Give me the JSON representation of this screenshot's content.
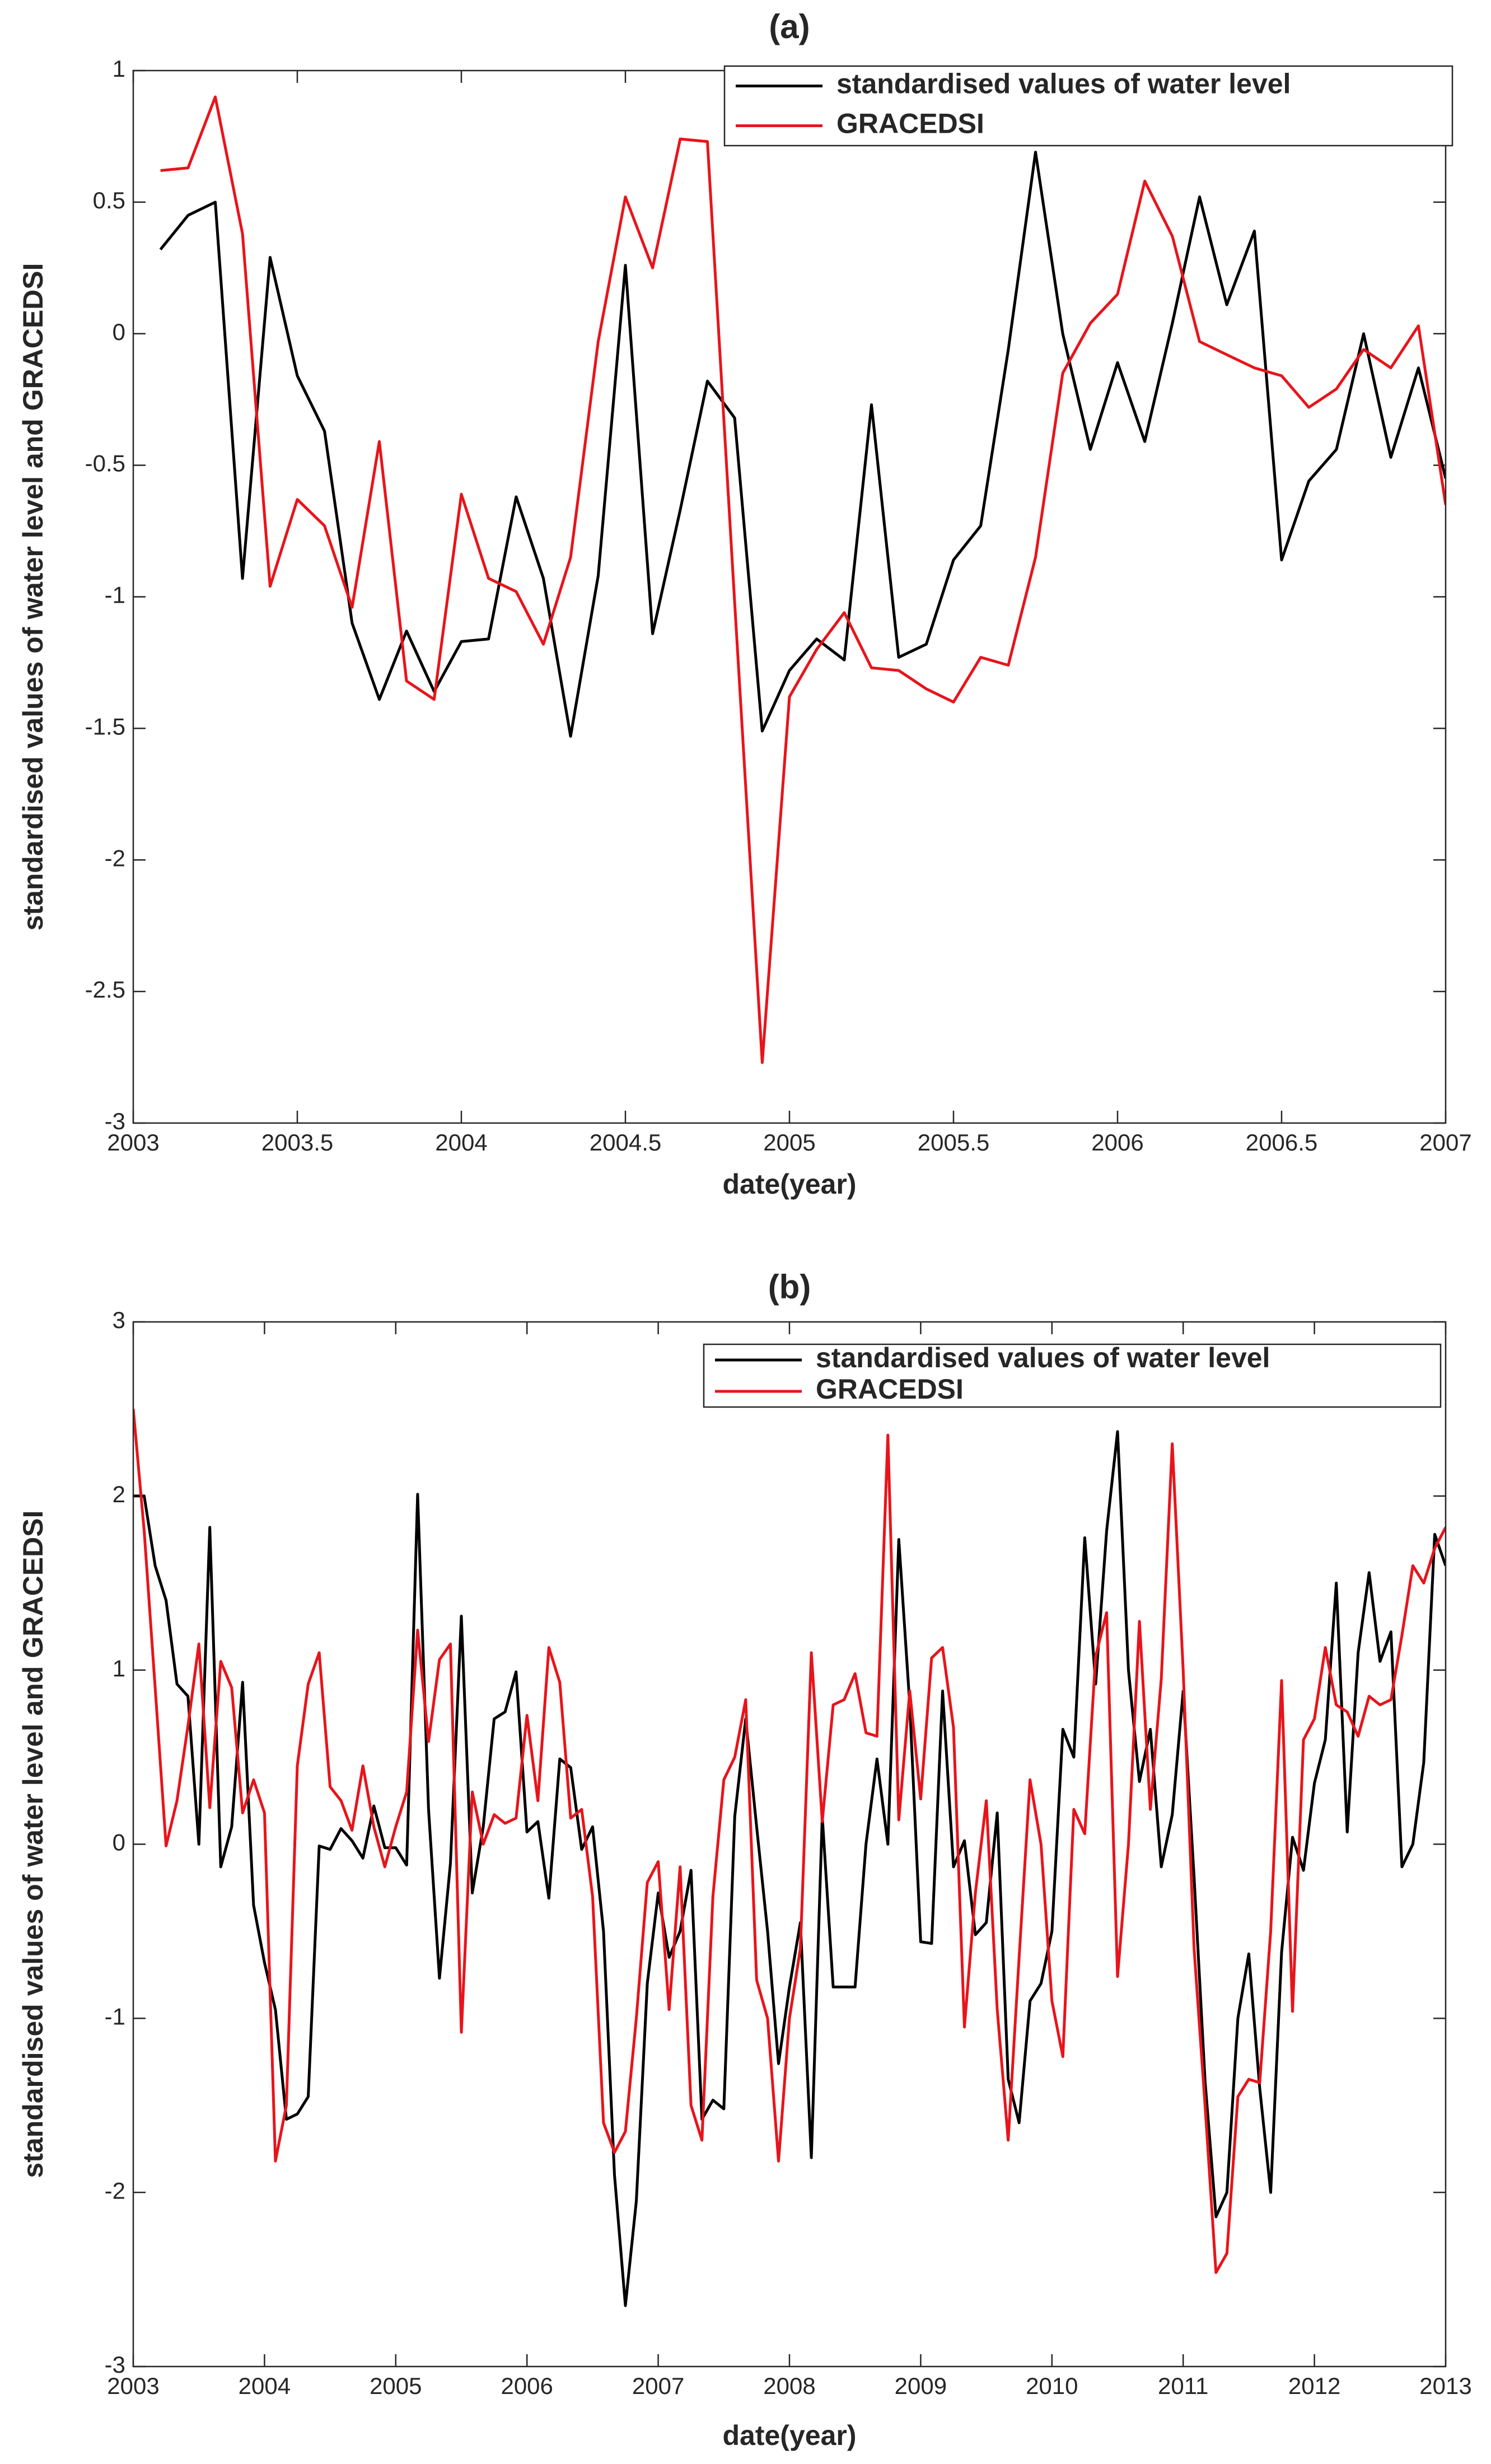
{
  "chart_data": [
    {
      "type": "line",
      "title": "(a)",
      "xlabel": "date(year)",
      "ylabel": "standardised values of water level and GRACEDSI",
      "legend": "upper right",
      "grid": false,
      "xlim": [
        2003,
        2007
      ],
      "ylim": [
        -3,
        1
      ],
      "xticks": [
        2003,
        2003.5,
        2004,
        2004.5,
        2005,
        2005.5,
        2006,
        2006.5,
        2007
      ],
      "yticks": [
        -3,
        -2.5,
        -2,
        -1.5,
        -1,
        -0.5,
        0,
        0.5,
        1
      ],
      "x": [
        2003.083,
        2003.167,
        2003.25,
        2003.333,
        2003.417,
        2003.5,
        2003.583,
        2003.667,
        2003.75,
        2003.833,
        2003.917,
        2004,
        2004.083,
        2004.167,
        2004.25,
        2004.333,
        2004.417,
        2004.5,
        2004.583,
        2004.667,
        2004.75,
        2004.833,
        2004.917,
        2005,
        2005.083,
        2005.167,
        2005.25,
        2005.333,
        2005.417,
        2005.5,
        2005.583,
        2005.667,
        2005.75,
        2005.833,
        2005.917,
        2006,
        2006.083,
        2006.167,
        2006.25,
        2006.333,
        2006.417,
        2006.5,
        2006.583,
        2006.667,
        2006.75,
        2006.833,
        2006.917,
        2007
      ],
      "series": [
        {
          "name": "standardised values of water level",
          "color": "#000000",
          "values": [
            0.32,
            0.45,
            0.5,
            -0.93,
            0.29,
            -0.16,
            -0.37,
            -1.1,
            -1.39,
            -1.13,
            -1.36,
            -1.17,
            -1.16,
            -0.62,
            -0.93,
            -1.53,
            -0.92,
            0.26,
            -1.14,
            -0.67,
            -0.18,
            -0.32,
            -1.51,
            -1.28,
            -1.16,
            -1.24,
            -0.27,
            -1.23,
            -1.18,
            -0.86,
            -0.73,
            -0.06,
            0.69,
            0,
            -0.44,
            -0.11,
            -0.41,
            0.04,
            0.52,
            0.11,
            0.39,
            -0.86,
            -0.56,
            -0.44,
            0,
            -0.47,
            -0.13,
            -0.55
          ]
        },
        {
          "name": "GRACEDSI",
          "color": "#e8141b",
          "values": [
            0.62,
            0.63,
            0.9,
            0.38,
            -0.96,
            -0.63,
            -0.73,
            -1.04,
            -0.41,
            -1.32,
            -1.39,
            -0.61,
            -0.93,
            -0.98,
            -1.18,
            -0.85,
            -0.03,
            0.52,
            0.25,
            0.74,
            0.73,
            -1.02,
            -2.77,
            -1.38,
            -1.2,
            -1.06,
            -1.27,
            -1.28,
            -1.35,
            -1.4,
            -1.23,
            -1.26,
            -0.85,
            -0.15,
            0.04,
            0.15,
            0.58,
            0.37,
            -0.03,
            -0.08,
            -0.13,
            -0.16,
            -0.28,
            -0.21,
            -0.06,
            -0.13,
            0.03,
            -0.65
          ]
        }
      ]
    },
    {
      "type": "line",
      "title": "(b)",
      "xlabel": "date(year)",
      "ylabel": "standardised values of water level and GRACEDSI",
      "legend": "upper right",
      "grid": false,
      "xlim": [
        2003,
        2013
      ],
      "ylim": [
        -3,
        3
      ],
      "xticks": [
        2003,
        2004,
        2005,
        2006,
        2007,
        2008,
        2009,
        2010,
        2011,
        2012,
        2013
      ],
      "yticks": [
        -3,
        -2,
        -1,
        0,
        1,
        2,
        3
      ],
      "x": [
        2003,
        2003.083,
        2003.167,
        2003.25,
        2003.333,
        2003.417,
        2003.5,
        2003.583,
        2003.667,
        2003.75,
        2003.833,
        2003.917,
        2004,
        2004.083,
        2004.167,
        2004.25,
        2004.333,
        2004.417,
        2004.5,
        2004.583,
        2004.667,
        2004.75,
        2004.833,
        2004.917,
        2005,
        2005.083,
        2005.167,
        2005.25,
        2005.333,
        2005.417,
        2005.5,
        2005.583,
        2005.667,
        2005.75,
        2005.833,
        2005.917,
        2006,
        2006.083,
        2006.167,
        2006.25,
        2006.333,
        2006.417,
        2006.5,
        2006.583,
        2006.667,
        2006.75,
        2006.833,
        2006.917,
        2007,
        2007.083,
        2007.167,
        2007.25,
        2007.333,
        2007.417,
        2007.5,
        2007.583,
        2007.667,
        2007.75,
        2007.833,
        2007.917,
        2008,
        2008.083,
        2008.167,
        2008.25,
        2008.333,
        2008.417,
        2008.5,
        2008.583,
        2008.667,
        2008.75,
        2008.833,
        2008.917,
        2009,
        2009.083,
        2009.167,
        2009.25,
        2009.333,
        2009.417,
        2009.5,
        2009.583,
        2009.667,
        2009.75,
        2009.833,
        2009.917,
        2010,
        2010.083,
        2010.167,
        2010.25,
        2010.333,
        2010.417,
        2010.5,
        2010.583,
        2010.667,
        2010.75,
        2010.833,
        2010.917,
        2011,
        2011.083,
        2011.167,
        2011.25,
        2011.333,
        2011.417,
        2011.5,
        2011.583,
        2011.667,
        2011.75,
        2011.833,
        2011.917,
        2012,
        2012.083,
        2012.167,
        2012.25,
        2012.333,
        2012.417,
        2012.5,
        2012.583,
        2012.667,
        2012.75,
        2012.833,
        2012.917,
        2013
      ],
      "series": [
        {
          "name": "standardised values of water level",
          "color": "#000000",
          "values": [
            2.0,
            2.0,
            1.6,
            1.4,
            0.92,
            0.85,
            0,
            1.82,
            -0.13,
            0.1,
            0.93,
            -0.35,
            -0.68,
            -0.95,
            -1.58,
            -1.55,
            -1.45,
            -0.01,
            -0.03,
            0.09,
            0.02,
            -0.08,
            0.22,
            -0.02,
            -0.02,
            -0.12,
            2.01,
            0.2,
            -0.77,
            -0.11,
            1.31,
            -0.28,
            0.1,
            0.72,
            0.76,
            0.99,
            0.07,
            0.13,
            -0.31,
            0.49,
            0.44,
            -0.03,
            0.1,
            -0.5,
            -1.9,
            -2.65,
            -2.05,
            -0.8,
            -0.28,
            -0.65,
            -0.5,
            -0.15,
            -1.58,
            -1.47,
            -1.52,
            0.16,
            0.72,
            0.1,
            -0.5,
            -1.26,
            -0.82,
            -0.45,
            -1.8,
            0.16,
            -0.82,
            -0.82,
            -0.82,
            0,
            0.49,
            0,
            1.75,
            0.8,
            -0.56,
            -0.57,
            0.88,
            -0.13,
            0.02,
            -0.52,
            -0.45,
            0.18,
            -1.35,
            -1.6,
            -0.9,
            -0.8,
            -0.5,
            0.66,
            0.5,
            1.76,
            0.92,
            1.8,
            2.37,
            1.0,
            0.36,
            0.66,
            -0.13,
            0.17,
            0.88,
            -0.19,
            -1.36,
            -2.14,
            -2.0,
            -1.0,
            -0.63,
            -1.4,
            -2.0,
            -0.62,
            0.04,
            -0.15,
            0.35,
            0.6,
            1.5,
            0.07,
            1.1,
            1.56,
            1.05,
            1.22,
            -0.13,
            0,
            0.47,
            1.78,
            1.6
          ]
        },
        {
          "name": "GRACEDSI",
          "color": "#e8141b",
          "values": [
            2.5,
            1.8,
            0.9,
            -0.01,
            0.25,
            0.68,
            1.15,
            0.21,
            1.05,
            0.9,
            0.18,
            0.37,
            0.18,
            -1.82,
            -1.5,
            0.45,
            0.92,
            1.1,
            0.33,
            0.25,
            0.08,
            0.45,
            0.1,
            -0.13,
            0.1,
            0.3,
            1.23,
            0.59,
            1.06,
            1.15,
            -1.08,
            0.3,
            0,
            0.17,
            0.12,
            0.15,
            0.74,
            0.25,
            1.13,
            0.93,
            0.15,
            0.2,
            -0.3,
            -1.6,
            -1.77,
            -1.65,
            -1.0,
            -0.22,
            -0.1,
            -0.95,
            -0.13,
            -1.5,
            -1.7,
            -0.3,
            0.37,
            0.5,
            0.83,
            -0.78,
            -1.0,
            -1.82,
            -1.0,
            -0.6,
            1.1,
            0.13,
            0.8,
            0.83,
            0.98,
            0.64,
            0.62,
            2.35,
            0.14,
            0.88,
            0.26,
            1.07,
            1.13,
            0.67,
            -1.05,
            -0.28,
            0.25,
            -0.95,
            -1.7,
            -0.65,
            0.37,
            0,
            -0.9,
            -1.22,
            0.2,
            0.06,
            1.08,
            1.33,
            -0.76,
            0,
            1.28,
            0.2,
            0.95,
            2.3,
            1.0,
            -0.6,
            -1.5,
            -2.46,
            -2.35,
            -1.45,
            -1.35,
            -1.37,
            -0.5,
            0.94,
            -0.96,
            0.6,
            0.72,
            1.13,
            0.8,
            0.76,
            0.62,
            0.85,
            0.8,
            0.83,
            1.2,
            1.6,
            1.5,
            1.7,
            1.82
          ]
        }
      ]
    }
  ]
}
